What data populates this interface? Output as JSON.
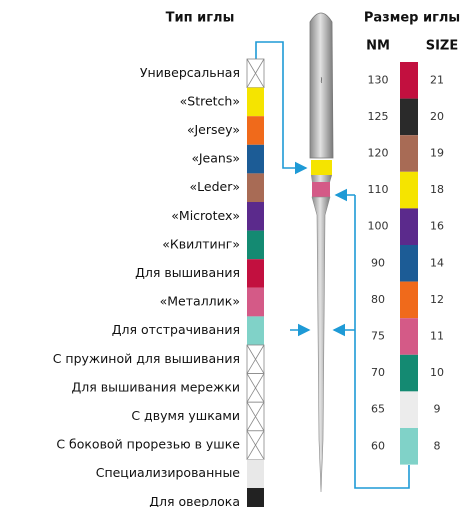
{
  "left_header": "Тип иглы",
  "right_header": "Размер иглы",
  "nm_header": "NM",
  "size_header": "SIZE",
  "types": [
    {
      "label": "Универсальная",
      "swatch": "crossed"
    },
    {
      "label": "«Stretch»",
      "swatch": "#f5e400"
    },
    {
      "label": "«Jersey»",
      "swatch": "#f06a1b"
    },
    {
      "label": "«Jeans»",
      "swatch": "#1c5c96"
    },
    {
      "label": "«Leder»",
      "swatch": "#a86b55"
    },
    {
      "label": "«Microtex»",
      "swatch": "#5b2a8c"
    },
    {
      "label": "«Квилтинг»",
      "swatch": "#148a72"
    },
    {
      "label": "Для вышивания",
      "swatch": "#c2103f"
    },
    {
      "label": "«Металлик»",
      "swatch": "#d45a87"
    },
    {
      "label": "Для отстрачивания",
      "swatch": "#80d2c8"
    },
    {
      "label": "С пружиной для вышивания",
      "swatch": "crossed"
    },
    {
      "label": "Для вышивания мережки",
      "swatch": "crossed"
    },
    {
      "label": "С двумя ушками",
      "swatch": "crossed"
    },
    {
      "label": "С боковой прорезью в ушке",
      "swatch": "crossed"
    },
    {
      "label": "Специализированные",
      "swatch": "#e8e8e8"
    },
    {
      "label": "Для оверлока",
      "swatch": "#222222"
    }
  ],
  "sizes": [
    {
      "nm": 130,
      "size": 21,
      "color": "#c2103f"
    },
    {
      "nm": 125,
      "size": 20,
      "color": "#2a2a2a"
    },
    {
      "nm": 120,
      "size": 19,
      "color": "#a86b55"
    },
    {
      "nm": 110,
      "size": 18,
      "color": "#f5e400"
    },
    {
      "nm": 100,
      "size": 16,
      "color": "#5b2a8c"
    },
    {
      "nm": 90,
      "size": 14,
      "color": "#1c5c96"
    },
    {
      "nm": 80,
      "size": 12,
      "color": "#f06a1b"
    },
    {
      "nm": 75,
      "size": 11,
      "color": "#d45a87"
    },
    {
      "nm": 70,
      "size": 10,
      "color": "#148a72"
    },
    {
      "nm": 65,
      "size": 9,
      "color": "#ececec"
    },
    {
      "nm": 60,
      "size": 8,
      "color": "#80d2c8"
    }
  ]
}
